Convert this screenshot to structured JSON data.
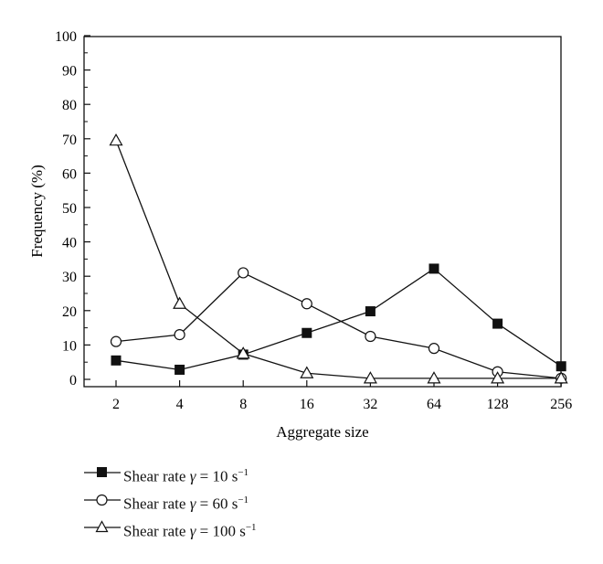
{
  "chart_data": {
    "type": "line",
    "xlabel": "Aggregate size",
    "ylabel": "Frequency (%)",
    "ylim": [
      0,
      100
    ],
    "y_ticks": [
      0,
      10,
      20,
      30,
      40,
      50,
      60,
      70,
      80,
      90,
      100
    ],
    "x_scale": "log2",
    "categories": [
      "2",
      "4",
      "8",
      "16",
      "32",
      "64",
      "128",
      "256"
    ],
    "x": [
      2,
      4,
      8,
      16,
      32,
      64,
      128,
      256
    ],
    "series": [
      {
        "label_prefix": "Shear rate ",
        "gamma": "γ",
        "label_value": " = 10 s",
        "label_exp": "−1",
        "marker": "square-filled",
        "values": [
          5.5,
          2.8,
          7.2,
          13.5,
          19.8,
          32.2,
          16.2,
          3.8
        ]
      },
      {
        "label_prefix": "Shear rate ",
        "gamma": "γ",
        "label_value": " = 60 s",
        "label_exp": "−1",
        "marker": "circle-open",
        "values": [
          11,
          13,
          31,
          22,
          12.5,
          9,
          2.2,
          0.3
        ]
      },
      {
        "label_prefix": "Shear rate ",
        "gamma": "γ",
        "label_value": " = 100 s",
        "label_exp": "−1",
        "marker": "triangle-open",
        "values": [
          69.5,
          22,
          7.5,
          1.8,
          0.3,
          0.3,
          0.3,
          0.3
        ]
      }
    ],
    "grid": false,
    "legend_position": "bottom-left"
  }
}
